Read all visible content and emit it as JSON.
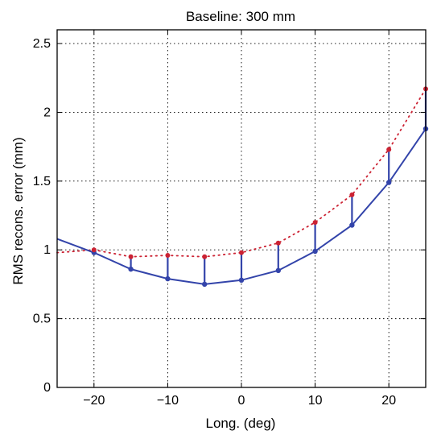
{
  "chart_data": {
    "type": "line",
    "title": "Baseline: 300 mm",
    "xlabel": "Long. (deg)",
    "ylabel": "RMS recons. error (mm)",
    "xlim": [
      -25,
      25
    ],
    "ylim": [
      0,
      2.6
    ],
    "xticks": [
      -20,
      -10,
      0,
      10,
      20
    ],
    "xtick_labels": [
      "−20",
      "−10",
      "0",
      "10",
      "20"
    ],
    "yticks": [
      0,
      0.5,
      1,
      1.5,
      2,
      2.5
    ],
    "ytick_labels": [
      "0",
      "0.5",
      "1",
      "1.5",
      "2",
      "2.5"
    ],
    "grid": true,
    "legend": "none",
    "series": [
      {
        "style": "solid-line-with-markers",
        "color": "#3344aa",
        "x": [
          -25,
          -20,
          -15,
          -10,
          -5,
          0,
          5,
          10,
          15,
          20,
          25
        ],
        "y": [
          1.08,
          0.98,
          0.86,
          0.79,
          0.75,
          0.78,
          0.85,
          0.99,
          1.18,
          1.49,
          1.88
        ],
        "marker_x": [
          -20,
          -15,
          -10,
          -5,
          0,
          5,
          10,
          15,
          20,
          25
        ]
      },
      {
        "style": "dotted-line-with-markers",
        "color": "#cc2233",
        "x": [
          -25,
          -20,
          -15,
          -10,
          -5,
          0,
          5,
          10,
          15,
          20,
          25
        ],
        "y": [
          0.98,
          1.0,
          0.95,
          0.96,
          0.95,
          0.98,
          1.05,
          1.2,
          1.4,
          1.73,
          2.17
        ],
        "marker_x": [
          -20,
          -15,
          -10,
          -5,
          0,
          5,
          10,
          15,
          20,
          25
        ]
      }
    ]
  }
}
